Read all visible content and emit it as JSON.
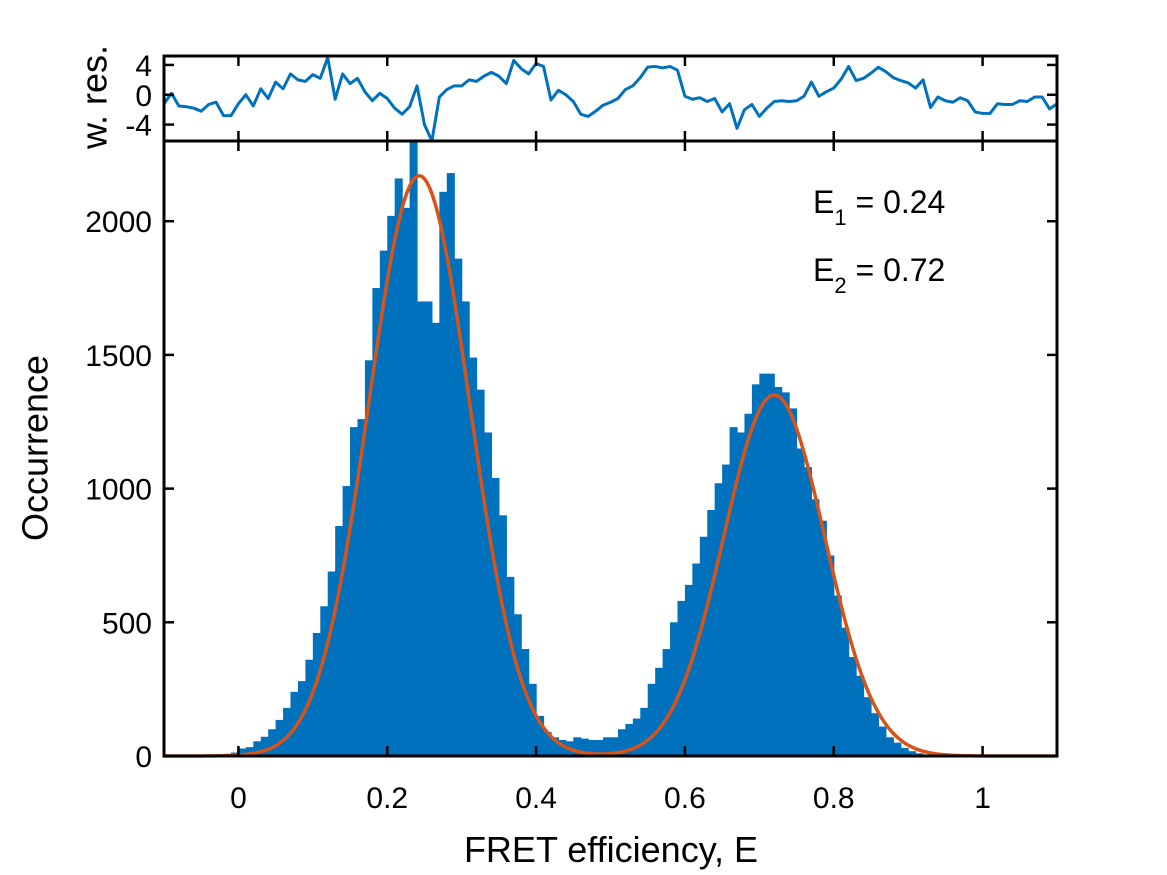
{
  "chart_data": [
    {
      "type": "line",
      "panel": "residuals",
      "ylabel": "w. res.",
      "xlim": [
        -0.1,
        1.1
      ],
      "ylim": [
        -6.2,
        5.2
      ],
      "yticks": [
        4,
        0,
        -4
      ],
      "ytick_labels": [
        "4",
        "0",
        "-4"
      ],
      "line_color": "#0072bd",
      "x": [
        -0.1,
        -0.09,
        -0.08,
        -0.07,
        -0.06,
        -0.05,
        -0.04,
        -0.03,
        -0.02,
        -0.01,
        0,
        0.01,
        0.02,
        0.03,
        0.04,
        0.05,
        0.06,
        0.07,
        0.08,
        0.09,
        0.1,
        0.11,
        0.12,
        0.13,
        0.14,
        0.15,
        0.16,
        0.17,
        0.18,
        0.19,
        0.2,
        0.21,
        0.22,
        0.23,
        0.24,
        0.25,
        0.26,
        0.27,
        0.28,
        0.29,
        0.3,
        0.31,
        0.32,
        0.33,
        0.34,
        0.35,
        0.36,
        0.37,
        0.38,
        0.39,
        0.4,
        0.41,
        0.42,
        0.43,
        0.44,
        0.45,
        0.46,
        0.47,
        0.48,
        0.49,
        0.5,
        0.51,
        0.52,
        0.53,
        0.54,
        0.55,
        0.56,
        0.57,
        0.58,
        0.59,
        0.6,
        0.61,
        0.62,
        0.63,
        0.64,
        0.65,
        0.66,
        0.67,
        0.68,
        0.69,
        0.7,
        0.71,
        0.72,
        0.73,
        0.74,
        0.75,
        0.76,
        0.77,
        0.78,
        0.79,
        0.8,
        0.81,
        0.82,
        0.83,
        0.84,
        0.85,
        0.86,
        0.87,
        0.88,
        0.89,
        0.9,
        0.91,
        0.92,
        0.93,
        0.94,
        0.95,
        0.96,
        0.97,
        0.98,
        0.99,
        1,
        1.01,
        1.02,
        1.03,
        1.04,
        1.05,
        1.06,
        1.07,
        1.08,
        1.09,
        1.1
      ],
      "y": [
        -1.2,
        0.2,
        -1.5,
        -1.6,
        -1.8,
        -2.2,
        -1.3,
        -1,
        -2.8,
        -2.8,
        -1.2,
        0,
        -1.5,
        0.8,
        -0.5,
        1.7,
        0.8,
        2.8,
        2,
        1.8,
        2.7,
        2.2,
        5,
        -0.6,
        2.8,
        1.5,
        2.2,
        0.4,
        -0.8,
        0.2,
        -0.5,
        -1.8,
        -2.6,
        -1.6,
        1.2,
        -4,
        -6.2,
        -0.3,
        0.7,
        1.2,
        1.2,
        2,
        1.8,
        2.5,
        3,
        2.5,
        1.5,
        4.6,
        3.5,
        2.8,
        4.2,
        3.8,
        -0.7,
        0.6,
        0,
        -0.9,
        -2.6,
        -2.9,
        -2.2,
        -1.4,
        -1,
        -0.5,
        0.7,
        1.2,
        2.3,
        3.7,
        3.8,
        3.6,
        3.8,
        3.3,
        -0.2,
        -0.6,
        -0.4,
        -0.9,
        -0.5,
        -2.3,
        -1.2,
        -4.5,
        -2,
        -1.3,
        -2.9,
        -1.8,
        -0.9,
        -0.8,
        -0.9,
        -0.8,
        -0.2,
        1.7,
        -0.2,
        0.4,
        0.9,
        2.1,
        3.8,
        1.9,
        2.2,
        2.9,
        3.7,
        3.1,
        2.3,
        1.9,
        1.6,
        0.9,
        2,
        -1.7,
        -0.3,
        -0.8,
        -1,
        -0.4,
        -0.8,
        -2.3,
        -2.5,
        -2.5,
        -1.2,
        -1.3,
        -1.3,
        -0.8,
        -0.9,
        -0.3,
        -0.3,
        -1.9,
        -1.2
      ]
    },
    {
      "type": "bar",
      "panel": "histogram",
      "xlabel": "FRET efficiency, E",
      "ylabel": "Occurrence",
      "xlim": [
        -0.1,
        1.1
      ],
      "ylim": [
        0,
        2300
      ],
      "xticks": [
        0,
        0.2,
        0.4,
        0.6,
        0.8,
        1
      ],
      "xtick_labels": [
        "0",
        "0.2",
        "0.4",
        "0.6",
        "0.8",
        "1"
      ],
      "yticks": [
        0,
        500,
        1000,
        1500,
        2000
      ],
      "ytick_labels": [
        "0",
        "500",
        "1000",
        "1500",
        "2000"
      ],
      "bin_width": 0.01,
      "bar_color": "#0072bd",
      "bin_centers": [
        -0.095,
        -0.085,
        -0.075,
        -0.065,
        -0.055,
        -0.045,
        -0.035,
        -0.025,
        -0.015,
        -0.005,
        0.005,
        0.015,
        0.025,
        0.035,
        0.045,
        0.055,
        0.065,
        0.075,
        0.085,
        0.095,
        0.105,
        0.115,
        0.125,
        0.135,
        0.145,
        0.155,
        0.165,
        0.175,
        0.185,
        0.195,
        0.205,
        0.215,
        0.225,
        0.235,
        0.245,
        0.255,
        0.265,
        0.275,
        0.285,
        0.295,
        0.305,
        0.315,
        0.325,
        0.335,
        0.345,
        0.355,
        0.365,
        0.375,
        0.385,
        0.395,
        0.405,
        0.415,
        0.425,
        0.435,
        0.445,
        0.455,
        0.465,
        0.475,
        0.485,
        0.495,
        0.505,
        0.515,
        0.525,
        0.535,
        0.545,
        0.555,
        0.565,
        0.575,
        0.585,
        0.595,
        0.605,
        0.615,
        0.625,
        0.635,
        0.645,
        0.655,
        0.665,
        0.675,
        0.685,
        0.695,
        0.705,
        0.715,
        0.725,
        0.735,
        0.745,
        0.755,
        0.765,
        0.775,
        0.785,
        0.795,
        0.805,
        0.815,
        0.825,
        0.835,
        0.845,
        0.855,
        0.865,
        0.875,
        0.885,
        0.895,
        0.905,
        0.915,
        0.925,
        0.935,
        0.945,
        0.955,
        0.965,
        0.975,
        0.985,
        0.995,
        1.005,
        1.015,
        1.025,
        1.035,
        1.045,
        1.055,
        1.065,
        1.075,
        1.085,
        1.095
      ],
      "counts": [
        0,
        0,
        0,
        0,
        1,
        2,
        3,
        5,
        8,
        13,
        28,
        33,
        55,
        72,
        100,
        135,
        180,
        240,
        280,
        360,
        460,
        560,
        690,
        860,
        1010,
        1230,
        1260,
        1480,
        1750,
        1890,
        2020,
        2160,
        2050,
        2300,
        1700,
        1700,
        1620,
        2110,
        2180,
        1860,
        1700,
        1490,
        1370,
        1210,
        1040,
        900,
        670,
        530,
        400,
        270,
        150,
        90,
        70,
        60,
        55,
        70,
        65,
        60,
        60,
        70,
        70,
        100,
        120,
        140,
        180,
        270,
        330,
        400,
        500,
        580,
        640,
        720,
        820,
        920,
        1020,
        1090,
        1230,
        1210,
        1280,
        1390,
        1430,
        1430,
        1380,
        1360,
        1300,
        1150,
        1080,
        960,
        880,
        750,
        600,
        480,
        370,
        300,
        220,
        160,
        110,
        70,
        50,
        30,
        18,
        10,
        6,
        3,
        2,
        1,
        1,
        0,
        0,
        0,
        0,
        0,
        0,
        0,
        0,
        0,
        0,
        0,
        0,
        0,
        0,
        0
      ],
      "fit_color": "#d95319",
      "fit_components": [
        {
          "amplitude": 2170,
          "mean": 0.243,
          "sigma": 0.068
        },
        {
          "amplitude": 1350,
          "mean": 0.72,
          "sigma": 0.068
        }
      ],
      "annotations": [
        {
          "base": "E",
          "sub": "1",
          "rest": " = 0.24"
        },
        {
          "base": "E",
          "sub": "2",
          "rest": " = 0.72"
        }
      ]
    }
  ]
}
